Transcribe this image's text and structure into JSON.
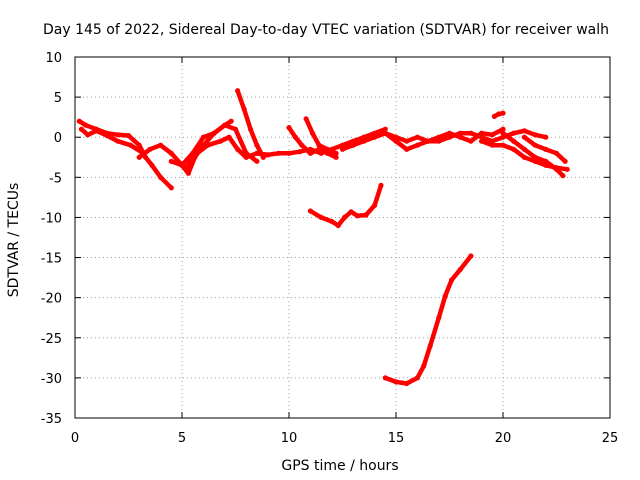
{
  "chart_data": {
    "type": "scatter",
    "title": "Day 145 of 2022, Sidereal Day-to-day VTEC variation (SDTVAR) for receiver walh",
    "xlabel": "GPS time / hours",
    "ylabel": "SDTVAR / TECUs",
    "xlim": [
      0,
      25
    ],
    "ylim": [
      -35,
      10
    ],
    "xticks": [
      0,
      5,
      10,
      15,
      20,
      25
    ],
    "yticks": [
      10,
      5,
      0,
      -5,
      -10,
      -15,
      -20,
      -25,
      -30,
      -35
    ],
    "grid": true,
    "color": "#ff0000",
    "series": [
      {
        "name": "s1",
        "x": [
          0.2,
          0.5,
          1.0,
          1.5,
          2.0,
          2.5,
          3.0,
          3.3,
          3.6,
          4.0,
          4.5
        ],
        "y": [
          2.0,
          1.5,
          1.0,
          0.5,
          0.3,
          0.2,
          -1.0,
          -2.5,
          -3.5,
          -5.0,
          -6.3
        ]
      },
      {
        "name": "s2",
        "x": [
          0.3,
          0.6,
          1.0,
          1.5,
          2.0,
          2.6,
          3.2
        ],
        "y": [
          1.0,
          0.3,
          0.8,
          0.2,
          -0.5,
          -1.0,
          -2.0
        ]
      },
      {
        "name": "s3",
        "x": [
          3.0,
          3.5,
          4.0,
          4.5,
          5.0,
          5.3,
          5.6,
          6.0,
          6.5,
          7.0,
          7.3
        ],
        "y": [
          -2.5,
          -1.5,
          -1.0,
          -2.0,
          -3.5,
          -4.5,
          -2.5,
          -1.0,
          0.5,
          1.5,
          2.0
        ]
      },
      {
        "name": "s4",
        "x": [
          4.5,
          5.0,
          5.5,
          6.0,
          6.5,
          7.0,
          7.5,
          8.0,
          8.5
        ],
        "y": [
          -3.0,
          -3.5,
          -2.0,
          0.0,
          0.5,
          1.5,
          1.0,
          -2.0,
          -3.0
        ]
      },
      {
        "name": "s5",
        "x": [
          5.2,
          5.7,
          6.2,
          6.8,
          7.2,
          7.6,
          8.0,
          8.5,
          9.0
        ],
        "y": [
          -3.8,
          -2.0,
          -1.0,
          -0.5,
          0.0,
          -1.5,
          -2.5,
          -2.0,
          -2.2
        ]
      },
      {
        "name": "s6",
        "x": [
          7.6,
          7.9,
          8.2,
          8.5,
          8.8
        ],
        "y": [
          5.8,
          3.5,
          1.0,
          -1.0,
          -2.5
        ]
      },
      {
        "name": "s7",
        "x": [
          8.5,
          9.0,
          9.5,
          10.0,
          10.5,
          11.0,
          11.5,
          12.0,
          12.5,
          13.0,
          13.5,
          14.0,
          14.5
        ],
        "y": [
          -2.0,
          -2.2,
          -2.0,
          -2.0,
          -1.8,
          -1.5,
          -2.0,
          -1.5,
          -1.0,
          -0.5,
          0.0,
          0.5,
          1.0
        ]
      },
      {
        "name": "s8",
        "x": [
          10.0,
          10.3,
          10.6,
          11.0,
          11.4,
          11.8,
          12.2
        ],
        "y": [
          1.2,
          0.0,
          -1.0,
          -2.0,
          -1.5,
          -2.0,
          -2.5
        ]
      },
      {
        "name": "s9",
        "x": [
          10.8,
          11.1,
          11.4,
          11.8,
          12.2
        ],
        "y": [
          2.3,
          0.5,
          -1.0,
          -1.5,
          -2.0
        ]
      },
      {
        "name": "s10",
        "x": [
          12.5,
          13.0,
          13.5,
          14.0,
          14.5,
          15.0,
          15.5,
          16.0,
          16.5,
          17.0,
          17.5,
          18.0,
          18.5,
          19.0,
          19.5,
          20.0
        ],
        "y": [
          -1.5,
          -1.0,
          -0.5,
          0.0,
          0.5,
          0.0,
          -0.5,
          0.0,
          -0.5,
          0.0,
          0.5,
          0.0,
          -0.5,
          0.5,
          0.3,
          1.0
        ]
      },
      {
        "name": "s11",
        "x": [
          14.5,
          15.0,
          15.5,
          16.0,
          16.5,
          17.0,
          17.5,
          18.0,
          18.5,
          19.0,
          19.5,
          20.0,
          20.5,
          21.0,
          21.5,
          22.0
        ],
        "y": [
          0.5,
          -0.5,
          -1.5,
          -1.0,
          -0.5,
          -0.5,
          0.0,
          0.5,
          0.5,
          0.0,
          -0.5,
          0.0,
          0.5,
          0.8,
          0.3,
          0.0
        ]
      },
      {
        "name": "s12",
        "x": [
          19.0,
          19.5,
          20.0,
          20.5,
          21.0,
          21.5,
          22.0,
          22.5,
          23.0
        ],
        "y": [
          -0.5,
          -1.0,
          -1.0,
          -1.5,
          -2.5,
          -3.0,
          -3.5,
          -3.8,
          -4.0
        ]
      },
      {
        "name": "s13",
        "x": [
          20.0,
          20.5,
          21.0,
          21.5,
          22.0,
          22.5,
          22.8
        ],
        "y": [
          0.5,
          -0.5,
          -1.5,
          -2.5,
          -3.0,
          -4.0,
          -4.8
        ]
      },
      {
        "name": "s14",
        "x": [
          21.0,
          21.5,
          22.0,
          22.5,
          22.9
        ],
        "y": [
          0.0,
          -1.0,
          -1.5,
          -2.0,
          -3.0
        ]
      },
      {
        "name": "s15",
        "x": [
          19.6,
          19.8,
          20.0
        ],
        "y": [
          2.6,
          2.9,
          3.0
        ]
      },
      {
        "name": "s16",
        "x": [
          11.0,
          11.5,
          12.0,
          12.3,
          12.6,
          12.9,
          13.2,
          13.6,
          14.0,
          14.3
        ],
        "y": [
          -9.2,
          -10.0,
          -10.5,
          -11.0,
          -10.0,
          -9.3,
          -9.8,
          -9.7,
          -8.5,
          -6.0
        ]
      },
      {
        "name": "s17",
        "x": [
          14.5,
          15.0,
          15.5,
          16.0,
          16.3,
          16.6,
          17.0,
          17.3,
          17.6,
          18.0,
          18.5
        ],
        "y": [
          -30.0,
          -30.5,
          -30.7,
          -30.0,
          -28.5,
          -26.0,
          -22.5,
          -19.8,
          -17.8,
          -16.5,
          -14.8
        ]
      }
    ]
  }
}
